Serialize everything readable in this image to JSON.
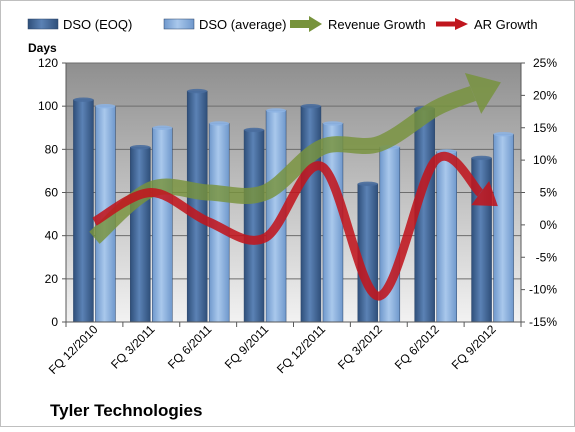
{
  "colors": {
    "dso_eoq": "#4a6e9e",
    "dso_avg": "#8db3e2",
    "revenue_growth": "#77933c",
    "ar_growth": "#c0161e",
    "plot_top": "#8f8f8f",
    "plot_bottom": "#f2f2f2"
  },
  "chart_data": {
    "type": "bar",
    "title": "Tyler Technologies",
    "ylabel": "Days",
    "y2label": "",
    "categories": [
      "FQ 12/2010",
      "FQ 3/2011",
      "FQ 6/2011",
      "FQ 9/2011",
      "FQ 12/2011",
      "FQ 3/2012",
      "FQ 6/2012",
      "FQ 9/2012"
    ],
    "ylim": [
      0,
      120
    ],
    "yticks": [
      0,
      20,
      40,
      60,
      80,
      100,
      120
    ],
    "y2lim": [
      -15,
      25
    ],
    "y2ticks": [
      -15,
      -10,
      -5,
      0,
      5,
      10,
      15,
      20,
      25
    ],
    "y2tick_labels": [
      "-15%",
      "-10%",
      "-5%",
      "0%",
      "5%",
      "10%",
      "15%",
      "20%",
      "25%"
    ],
    "grid": true,
    "legend_position": "top",
    "series": [
      {
        "name": "DSO (EOQ)",
        "type": "bar",
        "axis": "left",
        "values": [
          103,
          81,
          107,
          89,
          100,
          64,
          99,
          76
        ]
      },
      {
        "name": "DSO (average)",
        "type": "bar",
        "axis": "left",
        "values": [
          100,
          90,
          92,
          98,
          92,
          81,
          79,
          87
        ]
      },
      {
        "name": "Revenue Growth",
        "type": "line",
        "axis": "right",
        "values": [
          -2,
          5.5,
          5,
          5,
          12,
          12.5,
          18,
          21.5
        ]
      },
      {
        "name": "AR Growth",
        "type": "line",
        "axis": "right",
        "values": [
          0.5,
          5,
          0.5,
          -2,
          9,
          -11,
          10,
          3.5
        ]
      }
    ]
  }
}
